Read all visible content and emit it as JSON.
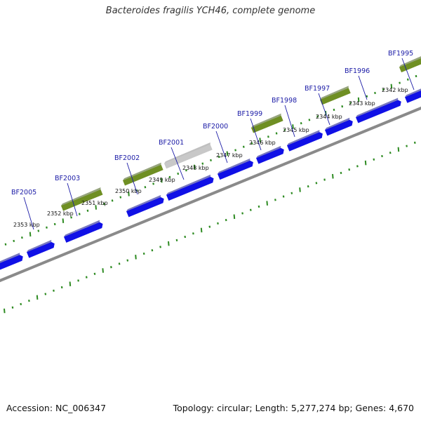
{
  "title": "Bacteroides fragilis YCH46, complete genome",
  "footer": {
    "accession": "Accession: NC_006347",
    "summary": "Topology: circular; Length: 5,277,274 bp; Genes: 4,670"
  },
  "colors": {
    "cds": "#1010e6",
    "cds_side": "#0a0a8c",
    "rna": "#6f8f23",
    "rna_side": "#3f5a12",
    "pseudo": "#c8c8c8",
    "pseudo_side": "#8a8a8a",
    "backbone": "#8a8a8a",
    "ticks": "#2e8b22",
    "label_line": "#1a1aa6"
  },
  "kbp_ticks": [
    "2342 kbp",
    "2343 kbp",
    "2344 kbp",
    "2345 kbp",
    "2346 kbp",
    "2347 kbp",
    "2348 kbp",
    "2349 kbp",
    "2350 kbp",
    "2351 kbp",
    "2352 kbp",
    "2353 kbp"
  ],
  "gene_labels": [
    "BF1995",
    "BF1996",
    "BF1997",
    "BF1998",
    "BF1999",
    "BF2000",
    "BF2001",
    "BF2002",
    "BF2003",
    "BF2005"
  ]
}
